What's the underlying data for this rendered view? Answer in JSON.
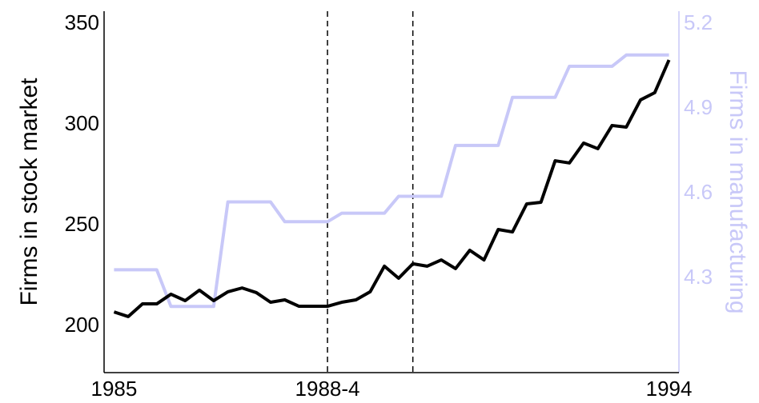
{
  "chart_data": {
    "type": "line",
    "ylabel": "Firms in stock market",
    "y2label": "Firms in manufacturing",
    "x": [
      0,
      1,
      2,
      3,
      4,
      5,
      6,
      7,
      8,
      9,
      10,
      11,
      12,
      13,
      14,
      15,
      16,
      17,
      18,
      19,
      20,
      21,
      22,
      23,
      24,
      25,
      26,
      27,
      28,
      29,
      30,
      31,
      32,
      33,
      34,
      35,
      36,
      37,
      38,
      39
    ],
    "series": [
      {
        "color": "#000000",
        "values": [
          207.1,
          204.8,
          211.1,
          211.1,
          215.9,
          212.7,
          217.9,
          212.7,
          217.1,
          219,
          216.7,
          211.9,
          213.1,
          209.9,
          209.9,
          209.9,
          211.9,
          213.1,
          217.1,
          229.8,
          223.8,
          231,
          229.8,
          232.9,
          228.6,
          237.7,
          232.9,
          248,
          246.8,
          260.7,
          261.5,
          282.1,
          281,
          290.9,
          288.1,
          299.6,
          298.8,
          312.3,
          315.9,
          332.1
        ]
      },
      {
        "color": "#c8c8f8",
        "axis": "y2",
        "values": [
          4.33,
          4.33,
          4.33,
          4.33,
          4.2,
          4.2,
          4.2,
          4.2,
          4.57,
          4.57,
          4.57,
          4.57,
          4.5,
          4.5,
          4.5,
          4.5,
          4.53,
          4.53,
          4.53,
          4.53,
          4.59,
          4.59,
          4.59,
          4.59,
          4.77,
          4.77,
          4.77,
          4.77,
          4.94,
          4.94,
          4.94,
          4.94,
          5.05,
          5.05,
          5.05,
          5.05,
          5.09,
          5.09,
          5.09,
          5.09
        ]
      }
    ],
    "vlines": [
      15,
      21
    ],
    "xlim": [
      -0.7,
      39.7
    ],
    "xticks": [
      {
        "value": 0,
        "label": "1985"
      },
      {
        "value": 15,
        "label": "1988-4"
      },
      {
        "value": 39,
        "label": "1994"
      }
    ],
    "ylim": [
      177,
      356.3
    ],
    "yticks": [
      200,
      250,
      300,
      350
    ],
    "y2lim": [
      3.966,
      5.245
    ],
    "y2ticks": [
      4.3,
      4.6,
      4.9,
      5.2
    ],
    "y2color": "#c8c8f8"
  }
}
